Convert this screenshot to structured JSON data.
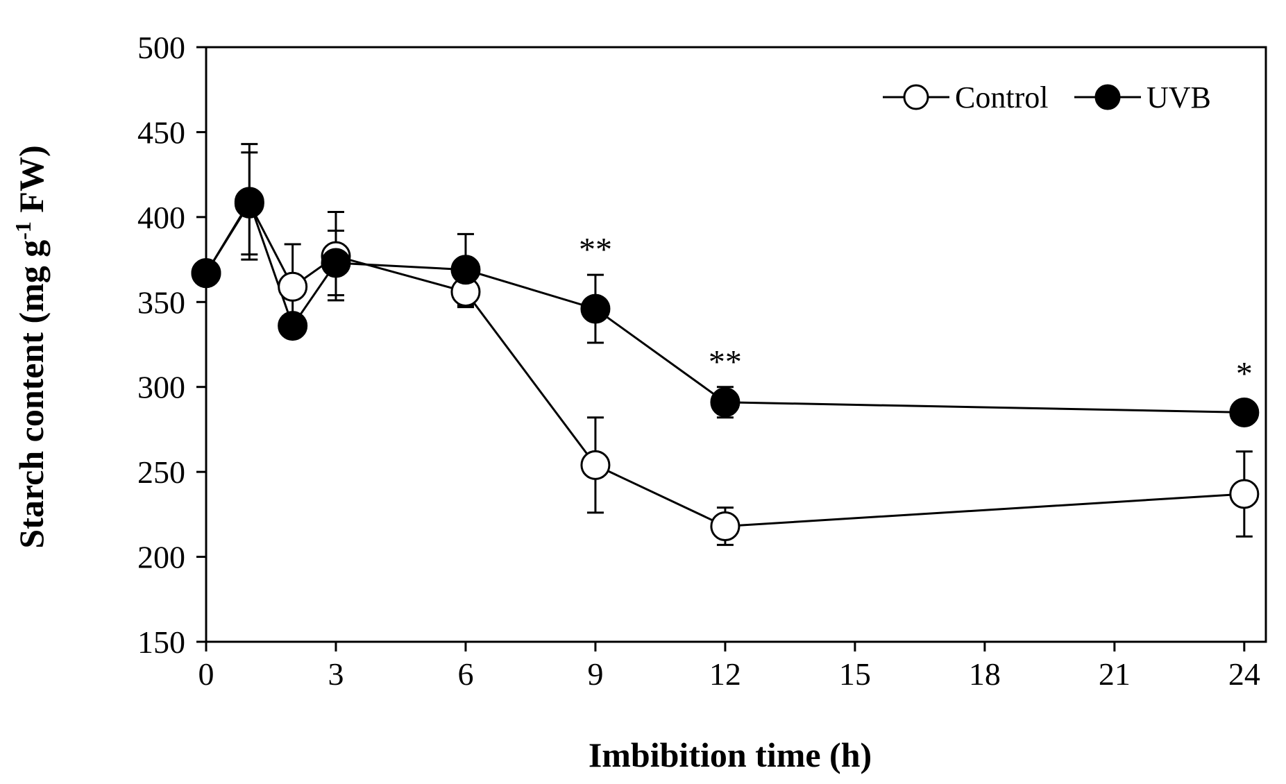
{
  "chart_data": {
    "type": "line",
    "title": "",
    "xlabel": "Imbibition time (h)",
    "ylabel_main": "Starch content (mg g",
    "ylabel_sup": "-1",
    "ylabel_tail": " FW)",
    "xlim": [
      0,
      24.5
    ],
    "ylim": [
      150,
      500
    ],
    "xticks": [
      0,
      3,
      6,
      9,
      12,
      15,
      18,
      21,
      24
    ],
    "xtick_labels": [
      "0",
      "3",
      "6",
      "9",
      "12",
      "15",
      "18",
      "21",
      "24"
    ],
    "yticks": [
      150,
      200,
      250,
      300,
      350,
      400,
      450,
      500
    ],
    "ytick_labels": [
      "150",
      "200",
      "250",
      "300",
      "350",
      "400",
      "450",
      "500"
    ],
    "grid": false,
    "legend_position": "top-right",
    "series": [
      {
        "name": "Control",
        "marker": "open-circle",
        "x": [
          0,
          1,
          2,
          3,
          6,
          9,
          12,
          24
        ],
        "y": [
          367,
          408,
          359,
          377,
          356,
          254,
          218,
          237
        ],
        "err": [
          0,
          30,
          25,
          26,
          9,
          28,
          11,
          25
        ]
      },
      {
        "name": "UVB",
        "marker": "filled-circle",
        "x": [
          0,
          1,
          2,
          3,
          6,
          9,
          12,
          24
        ],
        "y": [
          367,
          409,
          336,
          373,
          369,
          346,
          291,
          285
        ],
        "err": [
          0,
          34,
          0,
          19,
          21,
          20,
          9,
          0
        ]
      }
    ],
    "annotations": [
      {
        "x": 9,
        "y_above": 367,
        "text": "**"
      },
      {
        "x": 12,
        "y_above": 301,
        "text": "**"
      },
      {
        "x": 24,
        "y_above": 294,
        "text": "*"
      }
    ]
  }
}
